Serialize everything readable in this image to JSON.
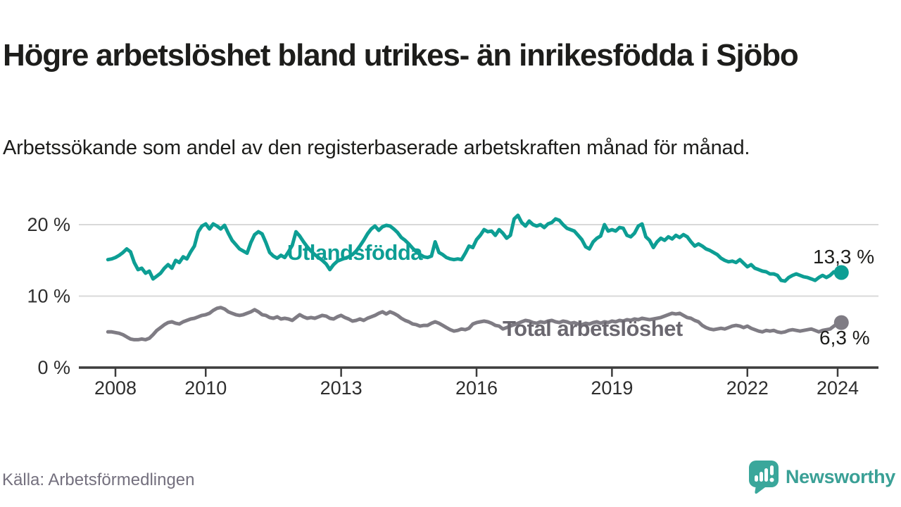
{
  "header": {
    "title": "Högre arbetslöshet bland utrikes- än inrikesfödda i Sjöbo",
    "subtitle": "Arbetssökande som andel av den registerbaserade arbetskraften månad för månad."
  },
  "footer": {
    "source": "Källa: Arbetsförmedlingen",
    "brand": "Newsworthy"
  },
  "colors": {
    "utlandsfodda_line": "#0d9e94",
    "total_line": "#7f7c84",
    "total_label": "#6a676f",
    "grid": "#d9d9d9",
    "axis": "#3d3d3d",
    "axis_text": "#2e2e2e",
    "title_text": "#1d1d1b",
    "source_text": "#74707e",
    "brand_teal": "#3aa096"
  },
  "chart_data": {
    "type": "line",
    "title": "Högre arbetslöshet bland utrikes- än inrikesfödda i Sjöbo",
    "subtitle": "Arbetssökande som andel av den registerbaserade arbetskraften månad för månad.",
    "unit": "%",
    "frequency": "monthly",
    "x_start": {
      "year": 2007,
      "month": 11
    },
    "x_ticks": [
      "2008",
      "2010",
      "2013",
      "2016",
      "2019",
      "2022",
      "2024"
    ],
    "x_tick_years": [
      2008,
      2010,
      2013,
      2016,
      2019,
      2022,
      2024
    ],
    "y_ticks": [
      {
        "value": 0,
        "label": "0 %"
      },
      {
        "value": 10,
        "label": "10 %"
      },
      {
        "value": 20,
        "label": "20 %"
      }
    ],
    "ylim": [
      0,
      22
    ],
    "grid": "horizontal-only",
    "legend_position": "inline-labels",
    "series": [
      {
        "name": "Utlandsfödda",
        "color": "#0d9e94",
        "end_label": "13,3 %",
        "end_value": 13.3,
        "values": [
          15.1,
          15.2,
          15.4,
          15.7,
          16.1,
          16.6,
          16.2,
          14.7,
          13.7,
          13.9,
          13.2,
          13.5,
          12.4,
          12.8,
          13.2,
          13.9,
          14.4,
          13.9,
          15.0,
          14.7,
          15.5,
          15.2,
          16.2,
          17.0,
          19.0,
          19.8,
          20.1,
          19.4,
          20.1,
          19.8,
          19.4,
          19.9,
          18.8,
          17.8,
          17.2,
          16.6,
          16.3,
          16.0,
          17.5,
          18.6,
          19.0,
          18.7,
          17.5,
          16.1,
          15.6,
          15.3,
          15.7,
          15.4,
          16.2,
          17.1,
          19.0,
          18.4,
          17.6,
          16.9,
          16.3,
          15.8,
          15.4,
          15.0,
          14.5,
          13.7,
          14.4,
          14.9,
          15.1,
          15.3,
          15.5,
          15.8,
          16.3,
          17.0,
          17.8,
          18.7,
          19.4,
          19.8,
          19.2,
          19.7,
          19.9,
          19.8,
          19.4,
          18.9,
          18.2,
          17.8,
          17.3,
          16.7,
          16.2,
          15.8,
          15.5,
          15.4,
          15.6,
          17.6,
          16.1,
          15.8,
          15.4,
          15.2,
          15.1,
          15.2,
          15.1,
          16.0,
          17.0,
          16.8,
          17.9,
          18.5,
          19.3,
          19.0,
          19.1,
          18.5,
          19.3,
          18.8,
          18.1,
          18.5,
          20.8,
          21.3,
          20.3,
          19.8,
          20.5,
          20.0,
          19.8,
          20.0,
          19.6,
          20.1,
          20.3,
          20.8,
          20.6,
          20.0,
          19.5,
          19.3,
          19.1,
          18.5,
          17.9,
          16.9,
          16.6,
          17.6,
          18.1,
          18.4,
          20.0,
          19.1,
          19.3,
          19.1,
          19.6,
          19.5,
          18.5,
          18.3,
          18.8,
          19.8,
          20.1,
          18.3,
          17.8,
          16.8,
          17.6,
          18.1,
          17.8,
          18.3,
          18.0,
          18.5,
          18.2,
          18.6,
          18.3,
          17.6,
          17.0,
          17.3,
          17.0,
          16.6,
          16.4,
          16.1,
          15.8,
          15.3,
          15.0,
          14.8,
          14.9,
          14.7,
          15.1,
          14.6,
          14.1,
          14.4,
          13.9,
          13.7,
          13.5,
          13.4,
          13.1,
          13.1,
          12.9,
          12.2,
          12.1,
          12.6,
          12.9,
          13.1,
          12.9,
          12.7,
          12.6,
          12.4,
          12.2,
          12.6,
          12.9,
          12.6,
          12.9,
          13.4,
          13.1,
          13.3
        ]
      },
      {
        "name": "Total arbetslöshet",
        "color": "#7f7c84",
        "label_color": "#6a676f",
        "end_label": "6,3 %",
        "end_value": 6.3,
        "values": [
          5.0,
          5.0,
          4.9,
          4.8,
          4.6,
          4.3,
          4.0,
          3.9,
          3.9,
          4.0,
          3.9,
          4.1,
          4.6,
          5.2,
          5.6,
          6.0,
          6.3,
          6.4,
          6.2,
          6.1,
          6.4,
          6.6,
          6.8,
          6.9,
          7.1,
          7.3,
          7.4,
          7.6,
          8.0,
          8.3,
          8.4,
          8.2,
          7.8,
          7.6,
          7.4,
          7.3,
          7.4,
          7.6,
          7.8,
          8.1,
          7.8,
          7.4,
          7.3,
          7.0,
          6.9,
          7.1,
          6.8,
          6.9,
          6.8,
          6.6,
          7.0,
          7.4,
          7.1,
          6.9,
          7.0,
          6.9,
          7.1,
          7.3,
          7.2,
          6.9,
          6.8,
          7.1,
          7.3,
          7.0,
          6.8,
          6.5,
          6.6,
          6.8,
          6.6,
          6.9,
          7.1,
          7.3,
          7.6,
          7.8,
          7.5,
          7.8,
          7.6,
          7.3,
          6.9,
          6.6,
          6.4,
          6.1,
          6.0,
          5.8,
          5.9,
          5.9,
          6.2,
          6.4,
          6.2,
          5.9,
          5.6,
          5.3,
          5.1,
          5.2,
          5.4,
          5.3,
          5.5,
          6.1,
          6.3,
          6.4,
          6.5,
          6.4,
          6.2,
          5.9,
          5.8,
          5.4,
          5.6,
          5.8,
          6.0,
          6.2,
          6.4,
          6.6,
          6.5,
          6.3,
          6.2,
          6.4,
          6.3,
          6.5,
          6.6,
          6.4,
          6.3,
          6.5,
          6.4,
          6.2,
          6.3,
          6.1,
          6.0,
          6.2,
          6.1,
          6.3,
          6.4,
          6.2,
          6.4,
          6.3,
          6.5,
          6.4,
          6.6,
          6.5,
          6.7,
          6.6,
          6.8,
          6.7,
          6.9,
          6.8,
          6.7,
          6.8,
          6.9,
          7.0,
          7.2,
          7.4,
          7.6,
          7.5,
          7.6,
          7.3,
          7.0,
          6.9,
          6.6,
          6.4,
          5.9,
          5.6,
          5.4,
          5.3,
          5.4,
          5.5,
          5.4,
          5.6,
          5.8,
          5.9,
          5.8,
          5.6,
          5.8,
          5.5,
          5.3,
          5.1,
          5.0,
          5.2,
          5.1,
          5.2,
          5.0,
          4.9,
          5.0,
          5.2,
          5.3,
          5.2,
          5.1,
          5.2,
          5.3,
          5.4,
          5.2,
          5.0,
          5.2,
          5.3,
          5.4,
          5.8,
          6.2,
          6.3
        ]
      }
    ]
  }
}
